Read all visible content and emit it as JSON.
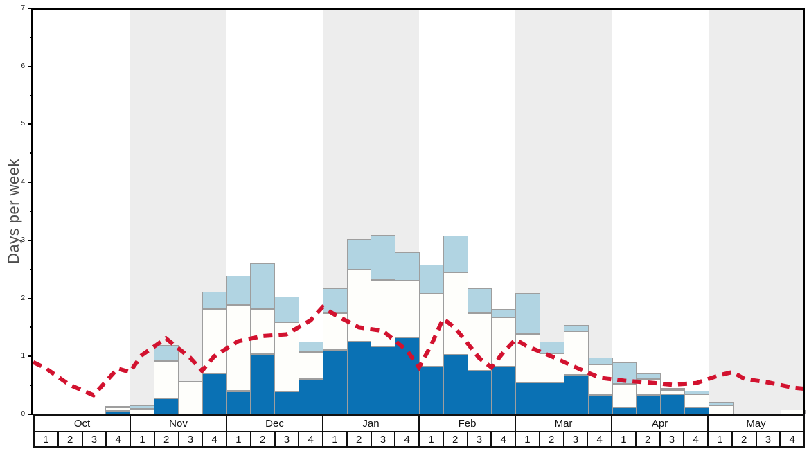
{
  "chart_data": {
    "type": "bar",
    "title": "",
    "ylabel": "Days per week",
    "ylim": [
      0,
      7
    ],
    "ytick_major_step": 1,
    "ytick_minor_step": 0.5,
    "grid": false,
    "legend": "none",
    "months": [
      {
        "label": "Oct",
        "shaded": false,
        "weeks": [
          "1",
          "2",
          "3",
          "4"
        ]
      },
      {
        "label": "Nov",
        "shaded": true,
        "weeks": [
          "1",
          "2",
          "3",
          "4"
        ]
      },
      {
        "label": "Dec",
        "shaded": false,
        "weeks": [
          "1",
          "2",
          "3",
          "4"
        ]
      },
      {
        "label": "Jan",
        "shaded": true,
        "weeks": [
          "1",
          "2",
          "3",
          "4"
        ]
      },
      {
        "label": "Feb",
        "shaded": false,
        "weeks": [
          "1",
          "2",
          "3",
          "4"
        ]
      },
      {
        "label": "Mar",
        "shaded": true,
        "weeks": [
          "1",
          "2",
          "3",
          "4"
        ]
      },
      {
        "label": "Apr",
        "shaded": false,
        "weeks": [
          "1",
          "2",
          "3",
          "4"
        ]
      },
      {
        "label": "May",
        "shaded": true,
        "weeks": [
          "1",
          "2",
          "3",
          "4"
        ]
      }
    ],
    "bars_note": "stacked segments; values are cumulative tops in days-per-week: dark_blue bottom, white middle, light_blue cap",
    "bars": [
      {
        "month": "Oct",
        "week": 1,
        "dark": 0,
        "white": 0,
        "light": 0
      },
      {
        "month": "Oct",
        "week": 2,
        "dark": 0,
        "white": 0,
        "light": 0
      },
      {
        "month": "Oct",
        "week": 3,
        "dark": 0,
        "white": 0,
        "light": 0
      },
      {
        "month": "Oct",
        "week": 4,
        "dark": 0.06,
        "white": 0.12,
        "light": 0.14
      },
      {
        "month": "Nov",
        "week": 1,
        "dark": 0,
        "white": 0.1,
        "light": 0.15
      },
      {
        "month": "Nov",
        "week": 2,
        "dark": 0.27,
        "white": 0.92,
        "light": 1.2
      },
      {
        "month": "Nov",
        "week": 3,
        "dark": 0,
        "white": 0.57,
        "light": 0.57
      },
      {
        "month": "Nov",
        "week": 4,
        "dark": 0.7,
        "white": 1.82,
        "light": 2.11
      },
      {
        "month": "Dec",
        "week": 1,
        "dark": 0.4,
        "white": 1.89,
        "light": 2.39
      },
      {
        "month": "Dec",
        "week": 2,
        "dark": 1.04,
        "white": 1.82,
        "light": 2.6
      },
      {
        "month": "Dec",
        "week": 3,
        "dark": 0.4,
        "white": 1.59,
        "light": 2.03
      },
      {
        "month": "Dec",
        "week": 4,
        "dark": 0.61,
        "white": 1.07,
        "light": 1.25
      },
      {
        "month": "Jan",
        "week": 1,
        "dark": 1.11,
        "white": 1.74,
        "light": 2.17
      },
      {
        "month": "Jan",
        "week": 2,
        "dark": 1.25,
        "white": 2.5,
        "light": 3.02
      },
      {
        "month": "Jan",
        "week": 3,
        "dark": 1.17,
        "white": 2.32,
        "light": 3.09
      },
      {
        "month": "Jan",
        "week": 4,
        "dark": 1.33,
        "white": 2.31,
        "light": 2.8
      },
      {
        "month": "Feb",
        "week": 1,
        "dark": 0.82,
        "white": 2.08,
        "light": 2.58
      },
      {
        "month": "Feb",
        "week": 2,
        "dark": 1.03,
        "white": 2.45,
        "light": 3.08
      },
      {
        "month": "Feb",
        "week": 3,
        "dark": 0.75,
        "white": 1.74,
        "light": 2.17
      },
      {
        "month": "Feb",
        "week": 4,
        "dark": 0.82,
        "white": 1.67,
        "light": 1.82
      },
      {
        "month": "Mar",
        "week": 1,
        "dark": 0.55,
        "white": 1.39,
        "light": 2.09
      },
      {
        "month": "Mar",
        "week": 2,
        "dark": 0.55,
        "white": 1.05,
        "light": 1.26
      },
      {
        "month": "Mar",
        "week": 3,
        "dark": 0.68,
        "white": 1.43,
        "light": 1.54
      },
      {
        "month": "Mar",
        "week": 4,
        "dark": 0.33,
        "white": 0.86,
        "light": 0.98
      },
      {
        "month": "Apr",
        "week": 1,
        "dark": 0.12,
        "white": 0.53,
        "light": 0.9
      },
      {
        "month": "Apr",
        "week": 2,
        "dark": 0.33,
        "white": 0.61,
        "light": 0.7
      },
      {
        "month": "Apr",
        "week": 3,
        "dark": 0.35,
        "white": 0.42,
        "light": 0.45
      },
      {
        "month": "Apr",
        "week": 4,
        "dark": 0.12,
        "white": 0.35,
        "light": 0.41
      },
      {
        "month": "May",
        "week": 1,
        "dark": 0,
        "white": 0.15,
        "light": 0.22
      },
      {
        "month": "May",
        "week": 2,
        "dark": 0,
        "white": 0,
        "light": 0
      },
      {
        "month": "May",
        "week": 3,
        "dark": 0,
        "white": 0,
        "light": 0
      },
      {
        "month": "May",
        "week": 4,
        "dark": 0,
        "white": 0.08,
        "light": 0.08
      }
    ],
    "red_line": {
      "style": "dashed",
      "points_note": "x in week units (0 = left edge of Oct wk1, 1 week per unit), y in days per week",
      "points": [
        [
          0,
          0.9
        ],
        [
          0.5,
          0.8
        ],
        [
          1.5,
          0.51
        ],
        [
          2.5,
          0.33
        ],
        [
          3.5,
          0.79
        ],
        [
          4,
          0.73
        ],
        [
          4.5,
          1.02
        ],
        [
          5.5,
          1.31
        ],
        [
          6.5,
          0.98
        ],
        [
          7,
          0.75
        ],
        [
          7.5,
          1.0
        ],
        [
          8.5,
          1.26
        ],
        [
          9.5,
          1.35
        ],
        [
          10.5,
          1.38
        ],
        [
          11.5,
          1.62
        ],
        [
          12,
          1.85
        ],
        [
          12.5,
          1.72
        ],
        [
          13.5,
          1.5
        ],
        [
          14.5,
          1.44
        ],
        [
          15.5,
          1.1
        ],
        [
          16,
          0.81
        ],
        [
          16.5,
          1.19
        ],
        [
          17,
          1.65
        ],
        [
          17.5,
          1.49
        ],
        [
          18.5,
          0.97
        ],
        [
          19,
          0.81
        ],
        [
          19.5,
          1.07
        ],
        [
          20,
          1.29
        ],
        [
          20.5,
          1.17
        ],
        [
          21.5,
          1.0
        ],
        [
          22.5,
          0.81
        ],
        [
          23.5,
          0.63
        ],
        [
          24.5,
          0.58
        ],
        [
          25.5,
          0.55
        ],
        [
          26.5,
          0.51
        ],
        [
          27.5,
          0.54
        ],
        [
          28.5,
          0.68
        ],
        [
          29,
          0.73
        ],
        [
          29.5,
          0.61
        ],
        [
          30.5,
          0.55
        ],
        [
          31.5,
          0.46
        ],
        [
          32,
          0.44
        ]
      ]
    },
    "colors": {
      "dark_blue": "#0a71b4",
      "white_bar": "#fefefb",
      "light_blue": "#b1d4e2",
      "red_line": "#d2122f",
      "shade_band": "#ededed",
      "bar_border": "#9e9e9e"
    }
  }
}
